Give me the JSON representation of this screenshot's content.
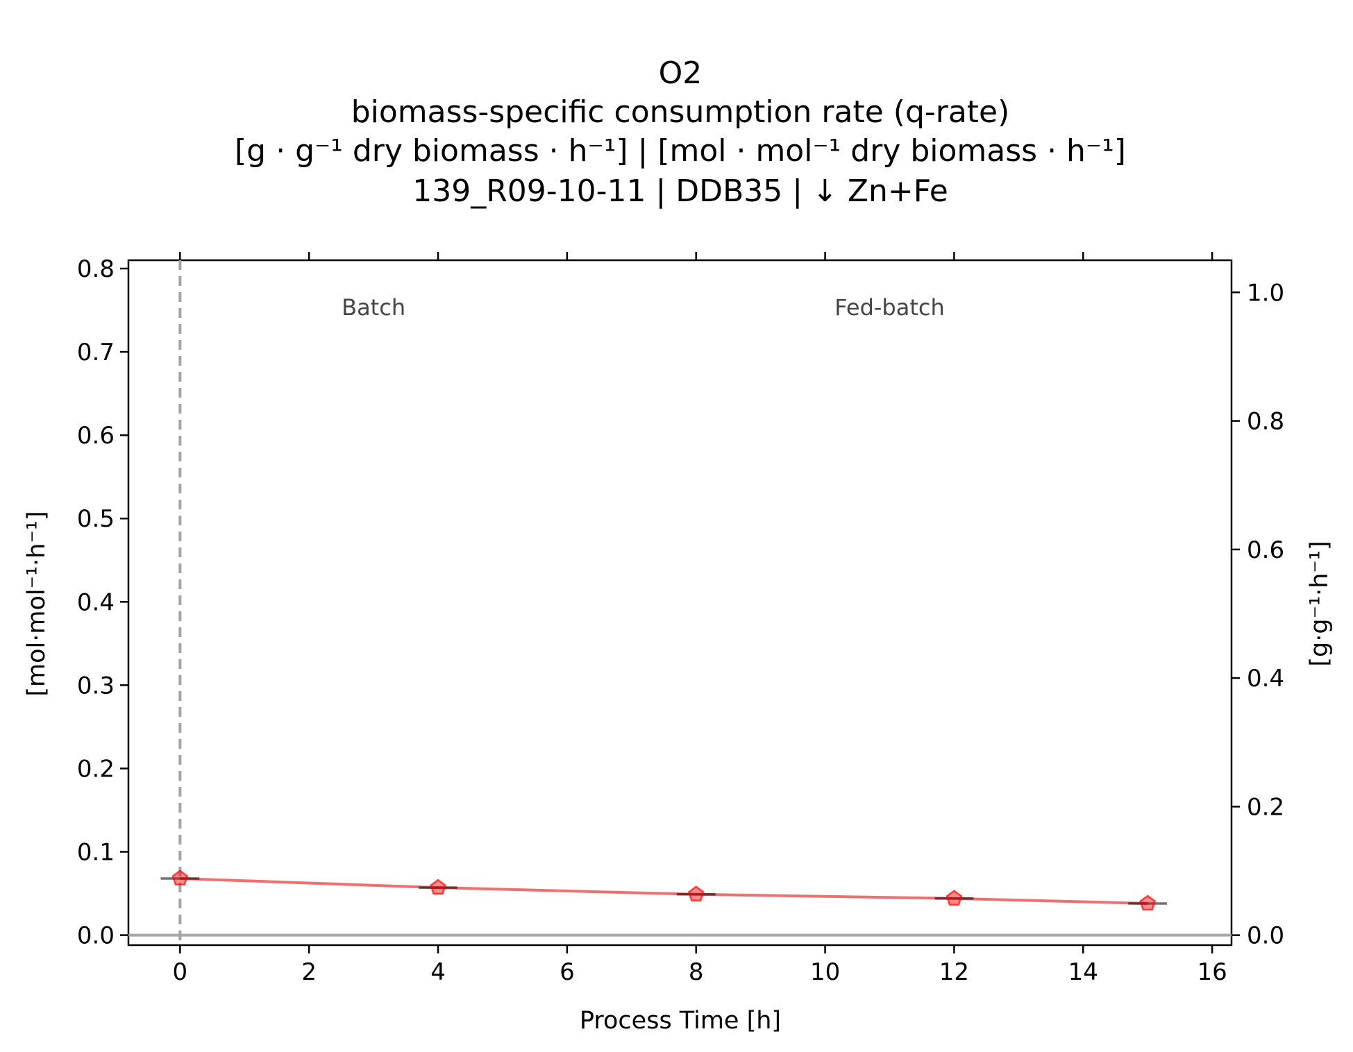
{
  "chart_data": {
    "type": "line",
    "title_lines": [
      "O2",
      "biomass-specific consumption rate (q-rate)",
      "[g · g⁻¹ dry biomass · h⁻¹]    |    [mol · mol⁻¹ dry biomass · h⁻¹]",
      "139_R09-10-11  |  DDB35  |  ↓ Zn+Fe"
    ],
    "xlabel": "Process Time [h]",
    "ylabel_left": "[mol·mol⁻¹·h⁻¹]",
    "ylabel_right": "[g·g⁻¹·h⁻¹]",
    "xlim": [
      -0.8,
      16.3
    ],
    "ylim_left": [
      -0.012,
      0.81
    ],
    "ylim_right": [
      -0.0155,
      1.05
    ],
    "x_ticks": [
      0,
      2,
      4,
      6,
      8,
      10,
      12,
      14,
      16
    ],
    "y_ticks_left": [
      0.0,
      0.1,
      0.2,
      0.3,
      0.4,
      0.5,
      0.6,
      0.7,
      0.8
    ],
    "y_ticks_right": [
      0.0,
      0.2,
      0.4,
      0.6,
      0.8,
      1.0
    ],
    "phase_labels": [
      {
        "text": "Batch",
        "x": 3.0
      },
      {
        "text": "Fed-batch",
        "x": 11.0
      }
    ],
    "phase_boundary_x": 0,
    "baseline_y": 0.0,
    "grid": false,
    "series": [
      {
        "color": "#ff0000",
        "line_color": "#f0706f",
        "x": [
          0,
          4,
          8,
          12,
          15
        ],
        "y": [
          0.068,
          0.057,
          0.049,
          0.044,
          0.038
        ],
        "x_err": [
          0.3,
          0.3,
          0.3,
          0.3,
          0.3
        ]
      }
    ]
  }
}
